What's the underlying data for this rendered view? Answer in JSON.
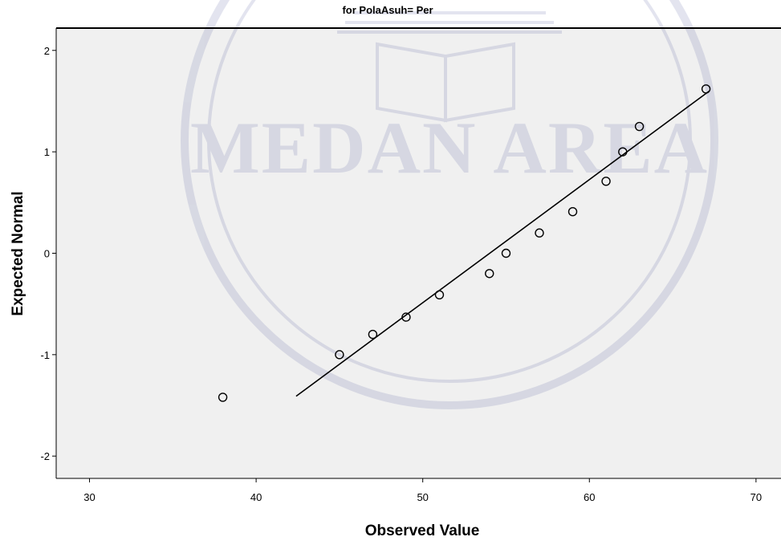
{
  "chart_data": {
    "type": "scatter",
    "title": "for PolaAsuh= Per",
    "xlabel": "Observed Value",
    "ylabel": "Expected Normal",
    "xlim": [
      28,
      71.5
    ],
    "ylim": [
      -2.22,
      2.22
    ],
    "x_ticks": [
      30,
      40,
      50,
      60,
      70
    ],
    "y_ticks": [
      2,
      1,
      0,
      -1,
      -2
    ],
    "grid": false,
    "points": [
      {
        "x": 38,
        "y": -1.42
      },
      {
        "x": 45,
        "y": -1.0
      },
      {
        "x": 47,
        "y": -0.8
      },
      {
        "x": 49,
        "y": -0.63
      },
      {
        "x": 51,
        "y": -0.41
      },
      {
        "x": 54,
        "y": -0.2
      },
      {
        "x": 55,
        "y": 0.0
      },
      {
        "x": 57,
        "y": 0.2
      },
      {
        "x": 59,
        "y": 0.41
      },
      {
        "x": 61,
        "y": 0.71
      },
      {
        "x": 62,
        "y": 1.0
      },
      {
        "x": 63,
        "y": 1.25
      },
      {
        "x": 67,
        "y": 1.62
      }
    ],
    "reference_line": {
      "x": [
        42.4,
        67.2
      ],
      "y": [
        -1.41,
        1.6
      ]
    }
  },
  "watermark": {
    "text": "MEDAN AREA"
  },
  "colors": {
    "plot_background": "#f0f0f0",
    "page_background": "#ffffff",
    "marker_stroke": "#000000",
    "line": "#000000",
    "frame": "#000000",
    "watermark": "#2d3a8c"
  }
}
